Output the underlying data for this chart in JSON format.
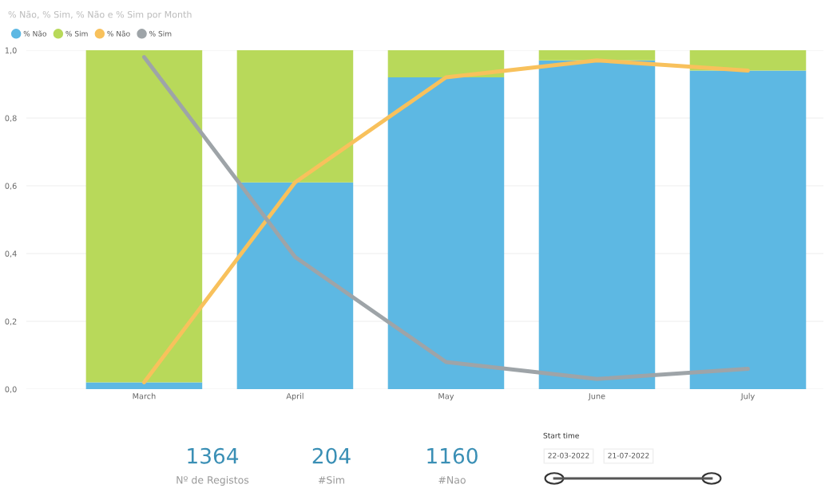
{
  "chart_data": {
    "type": "bar",
    "title": "% Não, % Sim, % Não e % Sim por Month",
    "categories": [
      "March",
      "April",
      "May",
      "June",
      "July"
    ],
    "stacked": true,
    "series": [
      {
        "name": "% Não",
        "color": "#5db8e3",
        "values": [
          0.02,
          0.61,
          0.92,
          0.97,
          0.94
        ]
      },
      {
        "name": "% Sim",
        "color": "#b8d95a",
        "values": [
          0.98,
          0.39,
          0.08,
          0.03,
          0.06
        ]
      },
      {
        "name": "% Não",
        "type": "line",
        "color": "#f8c15c",
        "values": [
          0.02,
          0.61,
          0.92,
          0.97,
          0.94
        ]
      },
      {
        "name": "% Sim",
        "type": "line",
        "color": "#9ea4a8",
        "values": [
          0.98,
          0.39,
          0.08,
          0.03,
          0.06
        ]
      }
    ],
    "ylim": [
      0,
      1
    ],
    "yticks": [
      {
        "value": 0,
        "label": "0,0"
      },
      {
        "value": 0.2,
        "label": "0,2"
      },
      {
        "value": 0.4,
        "label": "0,4"
      },
      {
        "value": 0.6,
        "label": "0,6"
      },
      {
        "value": 0.8,
        "label": "0,8"
      },
      {
        "value": 1,
        "label": "1,0"
      }
    ],
    "grid": "y",
    "legend": "top left",
    "marker": "none",
    "line_style": "solid",
    "annotations": [
      "1364",
      "Nº de Registos",
      "204",
      "#Sim",
      "1160",
      "#Nao",
      "Start time",
      "22-03-2022",
      "21-07-2022"
    ]
  }
}
